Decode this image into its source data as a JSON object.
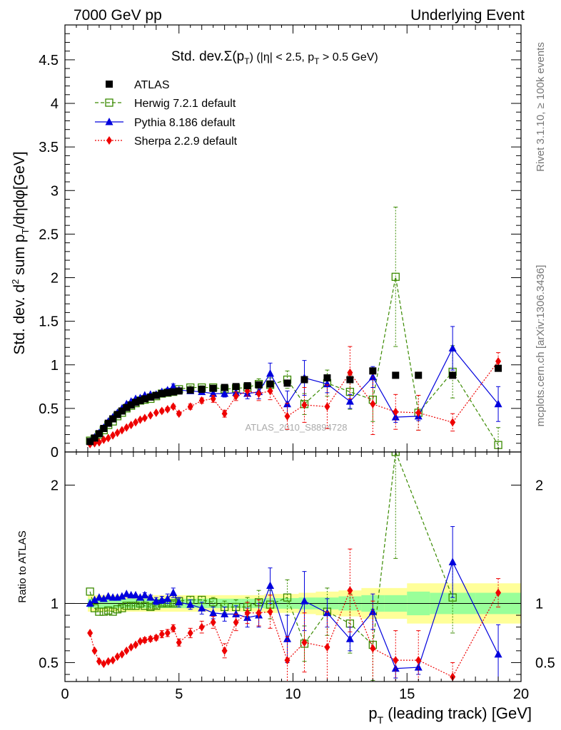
{
  "header": {
    "left": "7000 GeV pp",
    "right": "Underlying Event"
  },
  "side_labels": {
    "upper": "Rivet 3.1.10, ≥ 100k events",
    "lower": "mcplots.cern.ch [arXiv:1306.3436]"
  },
  "colors": {
    "atlas": "#000000",
    "herwig": "#3a8a00",
    "pythia": "#0000dd",
    "sherpa": "#ee0000",
    "band_inner": "#99ff99",
    "band_outer": "#ffff99"
  },
  "chart_data": [
    {
      "type": "scatter",
      "title": "Std. dev.Σ(pT) (|η| < 2.5, pT > 0.5 GeV)",
      "xlabel": "",
      "ylabel": "Std. dev. d² sum pT/dηdφ[GeV]",
      "xlim": [
        0,
        20
      ],
      "ylim": [
        0,
        4.9
      ],
      "yticks": [
        "0",
        "0.5",
        "1",
        "1.5",
        "2",
        "2.5",
        "3",
        "3.5",
        "4",
        "4.5"
      ],
      "watermark": "ATLAS_2010_S8894728",
      "legend_position": "top-left",
      "legend": [
        "ATLAS",
        "Herwig 7.2.1 default",
        "Pythia 8.186 default",
        "Sherpa 2.2.9 default"
      ],
      "series": [
        {
          "name": "ATLAS",
          "x": [
            1.1,
            1.3,
            1.5,
            1.7,
            1.9,
            2.1,
            2.3,
            2.5,
            2.7,
            2.9,
            3.1,
            3.3,
            3.5,
            3.75,
            4.0,
            4.25,
            4.5,
            4.75,
            5.0,
            5.5,
            6.0,
            6.5,
            7.0,
            7.5,
            8.0,
            8.5,
            9.0,
            9.75,
            10.5,
            11.5,
            12.5,
            13.5,
            14.5,
            15.5,
            17.0,
            19.0
          ],
          "y": [
            0.12,
            0.16,
            0.21,
            0.27,
            0.33,
            0.38,
            0.43,
            0.47,
            0.51,
            0.54,
            0.57,
            0.59,
            0.61,
            0.63,
            0.65,
            0.67,
            0.68,
            0.69,
            0.7,
            0.71,
            0.72,
            0.73,
            0.74,
            0.75,
            0.76,
            0.77,
            0.78,
            0.79,
            0.83,
            0.85,
            0.83,
            0.93,
            0.88,
            0.88,
            0.88,
            0.96
          ]
        },
        {
          "name": "Herwig 7.2.1 default",
          "x": [
            1.1,
            1.3,
            1.5,
            1.7,
            1.9,
            2.1,
            2.3,
            2.5,
            2.7,
            2.9,
            3.1,
            3.3,
            3.5,
            3.75,
            4.0,
            4.25,
            4.5,
            4.75,
            5.0,
            5.5,
            6.0,
            6.5,
            7.0,
            7.5,
            8.0,
            8.5,
            9.0,
            9.75,
            10.5,
            11.5,
            12.5,
            13.5,
            14.5,
            15.5,
            17.0,
            19.0
          ],
          "y": [
            0.13,
            0.15,
            0.2,
            0.25,
            0.31,
            0.35,
            0.41,
            0.45,
            0.5,
            0.53,
            0.56,
            0.59,
            0.6,
            0.61,
            0.64,
            0.67,
            0.68,
            0.69,
            0.72,
            0.74,
            0.74,
            0.74,
            0.72,
            0.73,
            0.74,
            0.78,
            0.77,
            0.83,
            0.55,
            0.79,
            0.69,
            0.6,
            2.01,
            0.45,
            0.92,
            0.08
          ],
          "yerr": [
            0.005,
            0.005,
            0.005,
            0.005,
            0.005,
            0.005,
            0.005,
            0.005,
            0.005,
            0.005,
            0.005,
            0.005,
            0.005,
            0.01,
            0.01,
            0.01,
            0.01,
            0.01,
            0.01,
            0.02,
            0.02,
            0.02,
            0.03,
            0.04,
            0.05,
            0.06,
            0.08,
            0.1,
            0.12,
            0.15,
            0.2,
            0.25,
            0.8,
            0.2,
            0.3,
            0.2
          ]
        },
        {
          "name": "Pythia 8.186 default",
          "x": [
            1.1,
            1.3,
            1.5,
            1.7,
            1.9,
            2.1,
            2.3,
            2.5,
            2.7,
            2.9,
            3.1,
            3.3,
            3.5,
            3.75,
            4.0,
            4.25,
            4.5,
            4.75,
            5.0,
            5.5,
            6.0,
            6.5,
            7.0,
            7.5,
            8.0,
            8.5,
            9.0,
            9.75,
            10.5,
            11.5,
            12.5,
            13.5,
            14.5,
            15.5,
            17.0,
            19.0
          ],
          "y": [
            0.12,
            0.17,
            0.22,
            0.28,
            0.35,
            0.4,
            0.45,
            0.5,
            0.55,
            0.58,
            0.61,
            0.62,
            0.65,
            0.66,
            0.66,
            0.69,
            0.71,
            0.75,
            0.71,
            0.7,
            0.69,
            0.67,
            0.67,
            0.68,
            0.67,
            0.69,
            0.9,
            0.55,
            0.85,
            0.78,
            0.58,
            0.86,
            0.4,
            0.41,
            1.19,
            0.55
          ],
          "yerr": [
            0.005,
            0.005,
            0.005,
            0.005,
            0.005,
            0.005,
            0.005,
            0.005,
            0.005,
            0.005,
            0.005,
            0.005,
            0.01,
            0.01,
            0.01,
            0.02,
            0.02,
            0.03,
            0.02,
            0.03,
            0.03,
            0.03,
            0.04,
            0.05,
            0.06,
            0.08,
            0.12,
            0.15,
            0.2,
            0.1,
            0.08,
            0.12,
            0.06,
            0.05,
            0.25,
            0.2
          ]
        },
        {
          "name": "Sherpa 2.2.9 default",
          "x": [
            1.1,
            1.3,
            1.5,
            1.7,
            1.9,
            2.1,
            2.3,
            2.5,
            2.7,
            2.9,
            3.1,
            3.3,
            3.5,
            3.75,
            4.0,
            4.25,
            4.5,
            4.75,
            5.0,
            5.5,
            6.0,
            6.5,
            7.0,
            7.5,
            8.0,
            8.5,
            9.0,
            9.75,
            10.5,
            11.5,
            12.5,
            13.5,
            14.5,
            15.5,
            17.0,
            19.0
          ],
          "y": [
            0.09,
            0.1,
            0.11,
            0.14,
            0.16,
            0.19,
            0.22,
            0.25,
            0.28,
            0.31,
            0.34,
            0.37,
            0.39,
            0.42,
            0.45,
            0.47,
            0.49,
            0.52,
            0.44,
            0.52,
            0.59,
            0.61,
            0.44,
            0.64,
            0.7,
            0.67,
            0.7,
            0.41,
            0.54,
            0.52,
            0.91,
            0.55,
            0.46,
            0.45,
            0.34,
            1.04
          ],
          "yerr": [
            0.005,
            0.005,
            0.005,
            0.005,
            0.005,
            0.005,
            0.005,
            0.005,
            0.005,
            0.005,
            0.005,
            0.005,
            0.01,
            0.01,
            0.01,
            0.02,
            0.02,
            0.02,
            0.02,
            0.03,
            0.03,
            0.04,
            0.04,
            0.05,
            0.06,
            0.08,
            0.1,
            0.15,
            0.2,
            0.25,
            0.3,
            0.35,
            0.2,
            0.2,
            0.1,
            0.1
          ]
        }
      ]
    },
    {
      "type": "scatter",
      "title": "",
      "xlabel": "pT (leading track) [GeV]",
      "ylabel": "Ratio to ATLAS",
      "xlim": [
        0,
        20
      ],
      "ylim": [
        0.34,
        2.28
      ],
      "xticks": [
        "0",
        "5",
        "10",
        "15",
        "20"
      ],
      "yticks": [
        "0.5",
        "1",
        "2"
      ],
      "reference_line": 1,
      "bands": {
        "x_edges": [
          1.0,
          1.2,
          1.4,
          1.6,
          1.8,
          2.0,
          2.2,
          2.4,
          2.6,
          2.8,
          3.0,
          3.2,
          3.4,
          3.6,
          3.9,
          4.1,
          4.4,
          4.6,
          4.9,
          5.25,
          5.75,
          6.25,
          6.75,
          7.25,
          7.75,
          8.25,
          8.75,
          9.25,
          10.25,
          11.0,
          12.0,
          13.0,
          14.0,
          15.0,
          16.0,
          18.0,
          20.0
        ],
        "inner_halfwidth": [
          0.04,
          0.04,
          0.04,
          0.04,
          0.04,
          0.04,
          0.04,
          0.04,
          0.04,
          0.04,
          0.04,
          0.04,
          0.04,
          0.04,
          0.04,
          0.04,
          0.04,
          0.04,
          0.04,
          0.04,
          0.04,
          0.04,
          0.04,
          0.04,
          0.04,
          0.04,
          0.045,
          0.045,
          0.05,
          0.05,
          0.06,
          0.07,
          0.07,
          0.1,
          0.09,
          0.09
        ],
        "outer_halfwidth": [
          0.07,
          0.07,
          0.07,
          0.07,
          0.07,
          0.07,
          0.07,
          0.07,
          0.07,
          0.07,
          0.07,
          0.07,
          0.07,
          0.07,
          0.07,
          0.07,
          0.07,
          0.07,
          0.07,
          0.07,
          0.07,
          0.07,
          0.07,
          0.07,
          0.07,
          0.07,
          0.08,
          0.08,
          0.09,
          0.1,
          0.11,
          0.13,
          0.13,
          0.17,
          0.17,
          0.17
        ]
      },
      "series": [
        {
          "name": "Herwig 7.2.1 default",
          "x": [
            1.1,
            1.3,
            1.5,
            1.7,
            1.9,
            2.1,
            2.3,
            2.5,
            2.7,
            2.9,
            3.1,
            3.3,
            3.5,
            3.75,
            4.0,
            4.25,
            4.5,
            4.75,
            5.0,
            5.5,
            6.0,
            6.5,
            7.0,
            7.5,
            8.0,
            8.5,
            9.0,
            9.75,
            10.5,
            11.5,
            12.5,
            13.5,
            14.5,
            17.0
          ],
          "y": [
            1.1,
            0.96,
            0.93,
            0.93,
            0.94,
            0.93,
            0.95,
            0.96,
            0.98,
            0.98,
            0.98,
            1.0,
            0.98,
            0.97,
            0.98,
            1.0,
            1.0,
            1.0,
            1.02,
            1.03,
            1.03,
            1.01,
            0.97,
            0.97,
            0.97,
            1.01,
            0.99,
            1.05,
            0.66,
            0.93,
            0.83,
            0.65,
            2.28,
            1.05
          ],
          "yerr": [
            0.01,
            0.01,
            0.01,
            0.01,
            0.01,
            0.01,
            0.01,
            0.01,
            0.01,
            0.01,
            0.01,
            0.01,
            0.01,
            0.02,
            0.02,
            0.02,
            0.02,
            0.02,
            0.02,
            0.03,
            0.03,
            0.04,
            0.05,
            0.06,
            0.08,
            0.1,
            0.12,
            0.15,
            0.15,
            0.2,
            0.25,
            0.3,
            0.9,
            0.3
          ]
        },
        {
          "name": "Pythia 8.186 default",
          "x": [
            1.1,
            1.3,
            1.5,
            1.7,
            1.9,
            2.1,
            2.3,
            2.5,
            2.7,
            2.9,
            3.1,
            3.3,
            3.5,
            3.75,
            4.0,
            4.25,
            4.5,
            4.75,
            5.0,
            5.5,
            6.0,
            6.5,
            7.0,
            7.5,
            8.0,
            8.5,
            9.0,
            9.75,
            10.5,
            11.5,
            12.5,
            13.5,
            14.5,
            15.5,
            17.0,
            19.0
          ],
          "y": [
            1.0,
            1.03,
            1.05,
            1.04,
            1.06,
            1.05,
            1.05,
            1.06,
            1.08,
            1.07,
            1.07,
            1.05,
            1.07,
            1.05,
            1.02,
            1.03,
            1.04,
            1.09,
            1.01,
            0.99,
            0.96,
            0.92,
            0.91,
            0.91,
            0.88,
            0.9,
            1.15,
            0.7,
            1.02,
            0.92,
            0.7,
            0.93,
            0.45,
            0.46,
            1.35,
            0.57
          ],
          "yerr": [
            0.01,
            0.01,
            0.01,
            0.01,
            0.01,
            0.01,
            0.01,
            0.01,
            0.01,
            0.01,
            0.01,
            0.01,
            0.02,
            0.02,
            0.03,
            0.03,
            0.04,
            0.04,
            0.04,
            0.04,
            0.05,
            0.05,
            0.06,
            0.07,
            0.08,
            0.1,
            0.15,
            0.2,
            0.25,
            0.12,
            0.1,
            0.15,
            0.08,
            0.06,
            0.3,
            0.25
          ]
        },
        {
          "name": "Sherpa 2.2.9 default",
          "x": [
            1.1,
            1.3,
            1.5,
            1.7,
            1.9,
            2.1,
            2.3,
            2.5,
            2.7,
            2.9,
            3.1,
            3.3,
            3.5,
            3.75,
            4.0,
            4.25,
            4.5,
            4.75,
            5.0,
            5.5,
            6.0,
            6.5,
            7.0,
            7.5,
            8.0,
            8.5,
            9.0,
            9.75,
            10.5,
            11.5,
            12.5,
            13.5,
            14.5,
            15.5,
            17.0,
            19.0
          ],
          "y": [
            0.75,
            0.6,
            0.51,
            0.49,
            0.51,
            0.52,
            0.55,
            0.57,
            0.6,
            0.63,
            0.65,
            0.68,
            0.69,
            0.7,
            0.71,
            0.74,
            0.75,
            0.79,
            0.67,
            0.75,
            0.8,
            0.84,
            0.6,
            0.84,
            0.92,
            0.92,
            0.93,
            0.52,
            0.67,
            0.63,
            1.11,
            0.62,
            0.52,
            0.52,
            0.38,
            1.09
          ],
          "yerr": [
            0.01,
            0.01,
            0.01,
            0.01,
            0.01,
            0.01,
            0.01,
            0.01,
            0.01,
            0.01,
            0.01,
            0.01,
            0.02,
            0.02,
            0.02,
            0.03,
            0.03,
            0.03,
            0.03,
            0.04,
            0.05,
            0.05,
            0.06,
            0.07,
            0.09,
            0.11,
            0.14,
            0.2,
            0.25,
            0.3,
            0.35,
            0.4,
            0.25,
            0.25,
            0.12,
            0.12
          ]
        }
      ]
    }
  ]
}
